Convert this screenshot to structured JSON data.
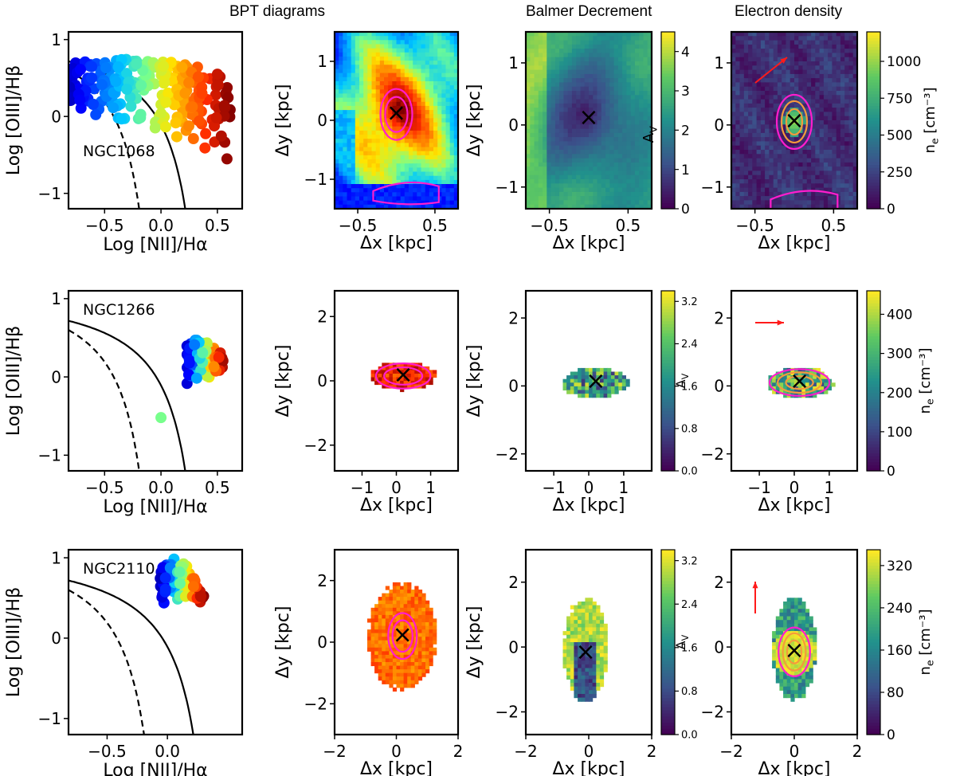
{
  "column_titles": [
    "BPT diagrams",
    "Balmer Decrement",
    "Electron density"
  ],
  "colors": {
    "frame": "#000000",
    "contour_magenta": "#ff1dce",
    "contour_orange": "#f59a3c",
    "arrow": "#ff1a1a"
  },
  "chart_data": {
    "rows": [
      {
        "galaxy": "NGC1068",
        "bpt": {
          "type": "scatter",
          "xlabel": "Log [NII]/Hα",
          "ylabel": "Log [OIII]/Hβ",
          "xlim": [
            -0.82,
            0.72
          ],
          "ylim": [
            -1.2,
            1.1
          ],
          "xticks": [
            -0.5,
            0.0,
            0.5
          ],
          "xticklabels": [
            "−0.5",
            "0.0",
            "0.5"
          ],
          "yticks": [
            -1,
            0,
            1
          ],
          "yticklabels": [
            "−1",
            "0",
            "1"
          ],
          "label": "NGC1068",
          "label_pos": "lower-left",
          "cloud": {
            "x_range": [
              -0.82,
              0.62
            ],
            "upper_peak": 0.75,
            "lower_left": 0.0,
            "lower_right": -0.75,
            "n": 260,
            "cmap": "jet"
          }
        },
        "map": {
          "xlabel": "Δx [kpc]",
          "ylabel": "Δy [kpc]",
          "xlim": [
            -0.8,
            0.8
          ],
          "ylim": [
            -1.5,
            1.5
          ],
          "xticks": [
            -0.5,
            0.5
          ],
          "xticklabels": [
            "−0.5",
            "0.5"
          ],
          "yticks": [
            -1,
            0,
            1
          ],
          "yticklabels": [
            "−1",
            "0",
            "1"
          ],
          "center": [
            0.0,
            0.1
          ],
          "style": "bpt_full"
        },
        "balmer": {
          "xlabel": "Δx [kpc]",
          "ylabel": "Δy [kpc]",
          "xlim": [
            -0.8,
            0.8
          ],
          "ylim": [
            -1.35,
            1.5
          ],
          "xticks": [
            -0.5,
            0.5
          ],
          "xticklabels": [
            "−0.5",
            "0.5"
          ],
          "yticks": [
            -1,
            0,
            1
          ],
          "yticklabels": [
            "−1",
            "0",
            "1"
          ],
          "center": [
            0.0,
            0.1
          ],
          "style": "av_full",
          "colorbar": {
            "label": "A_V",
            "min": 0,
            "max": 4.5,
            "ticks": [
              0,
              1,
              2,
              3,
              4
            ],
            "ticklabels": [
              "0",
              "1",
              "2",
              "3",
              "4"
            ],
            "label_side": "left"
          }
        },
        "density": {
          "xlabel": "Δx [kpc]",
          "ylabel": "",
          "xlim": [
            -0.8,
            0.8
          ],
          "ylim": [
            -1.35,
            1.5
          ],
          "xticks": [
            -0.5,
            0.5
          ],
          "xticklabels": [
            "−0.5",
            "0.5"
          ],
          "yticks": [
            -1,
            0,
            1
          ],
          "yticklabels": [
            "−1",
            "0",
            "1"
          ],
          "center": [
            0.0,
            0.05
          ],
          "style": "ne_full",
          "arrow": "up-right",
          "colorbar": {
            "label": "n_e [cm⁻³]",
            "min": 0,
            "max": 1200,
            "ticks": [
              0,
              250,
              500,
              750,
              1000
            ],
            "ticklabels": [
              "0",
              "250",
              "500",
              "750",
              "1000"
            ]
          }
        }
      },
      {
        "galaxy": "NGC1266",
        "bpt": {
          "type": "scatter",
          "xlabel": "Log [NII]/Hα",
          "ylabel": "Log [OIII]/Hβ",
          "xlim": [
            -0.82,
            0.72
          ],
          "ylim": [
            -1.2,
            1.1
          ],
          "xticks": [
            -0.5,
            0.0,
            0.5
          ],
          "xticklabels": [
            "−0.5",
            "0.0",
            "0.5"
          ],
          "yticks": [
            -1,
            0,
            1
          ],
          "yticklabels": [
            "−1",
            "0",
            "1"
          ],
          "label": "NGC1266",
          "label_pos": "upper-left",
          "cloud": {
            "x_range": [
              0.22,
              0.56
            ],
            "upper_peak": 0.48,
            "lower_left": -0.1,
            "lower_right": 0.05,
            "n": 80,
            "cmap": "jet"
          },
          "extra_points": [
            {
              "x": 0.0,
              "y": -0.52,
              "v": 0.35
            }
          ]
        },
        "map": {
          "xlabel": "Δx [kpc]",
          "ylabel": "Δy [kpc]",
          "xlim": [
            -1.8,
            1.8
          ],
          "ylim": [
            -2.8,
            2.8
          ],
          "xticks": [
            -1,
            0,
            1
          ],
          "xticklabels": [
            "−1",
            "0",
            "1"
          ],
          "yticks": [
            -2,
            0,
            2
          ],
          "yticklabels": [
            "−2",
            "0",
            "2"
          ],
          "center": [
            0.2,
            0.15
          ],
          "style": "bpt_blob"
        },
        "balmer": {
          "xlabel": "Δx [kpc]",
          "ylabel": "Δy [kpc]",
          "xlim": [
            -1.8,
            1.8
          ],
          "ylim": [
            -2.5,
            2.8
          ],
          "xticks": [
            -1,
            0,
            1
          ],
          "xticklabels": [
            "−1",
            "0",
            "1"
          ],
          "yticks": [
            -2,
            0,
            2
          ],
          "yticklabels": [
            "−2",
            "0",
            "2"
          ],
          "center": [
            0.2,
            0.1
          ],
          "style": "av_blob",
          "colorbar": {
            "label": "",
            "min": 0,
            "max": 3.4,
            "ticks": [
              0.0,
              0.8,
              1.6,
              2.4,
              3.2
            ],
            "ticklabels": [
              "0.0",
              "0.8",
              "1.6",
              "2.4",
              "3.2"
            ]
          }
        },
        "density": {
          "xlabel": "Δx [kpc]",
          "ylabel": "A_V",
          "xlim": [
            -1.8,
            1.8
          ],
          "ylim": [
            -2.5,
            2.8
          ],
          "xticks": [
            -1,
            0,
            1
          ],
          "xticklabels": [
            "−1",
            "0",
            "1"
          ],
          "yticks": [
            -2,
            0,
            2
          ],
          "yticklabels": [
            "−2",
            "0",
            "2"
          ],
          "center": [
            0.15,
            0.1
          ],
          "style": "ne_blob",
          "arrow": "right",
          "colorbar": {
            "label": "n_e [cm⁻³]",
            "min": 0,
            "max": 460,
            "ticks": [
              0,
              100,
              200,
              300,
              400
            ],
            "ticklabels": [
              "0",
              "100",
              "200",
              "300",
              "400"
            ]
          }
        }
      },
      {
        "galaxy": "NGC2110",
        "bpt": {
          "type": "scatter",
          "xlabel": "Log [NII]/Hα",
          "ylabel": "Log [OIII]/Hβ",
          "xlim": [
            -0.82,
            0.62
          ],
          "ylim": [
            -1.2,
            1.1
          ],
          "xticks": [
            -0.5,
            0.0
          ],
          "xticklabels": [
            "−0.5",
            "0.0"
          ],
          "yticks": [
            -1,
            0,
            1
          ],
          "yticklabels": [
            "−1",
            "0",
            "1"
          ],
          "label": "NGC2110",
          "label_pos": "upper-left",
          "cloud": {
            "x_range": [
              -0.06,
              0.3
            ],
            "upper_peak": 1.0,
            "lower_left": 0.38,
            "lower_right": 0.45,
            "n": 95,
            "cmap": "jet"
          }
        },
        "map": {
          "xlabel": "Δx [kpc]",
          "ylabel": "Δy [kpc]",
          "xlim": [
            -2.0,
            2.0
          ],
          "ylim": [
            -3.0,
            3.0
          ],
          "xticks": [
            -2,
            0,
            2
          ],
          "xticklabels": [
            "−2",
            "0",
            "2"
          ],
          "yticks": [
            -2,
            0,
            2
          ],
          "yticklabels": [
            "−2",
            "0",
            "2"
          ],
          "center": [
            0.2,
            0.2
          ],
          "style": "bpt_orange"
        },
        "balmer": {
          "xlabel": "Δx [kpc]",
          "ylabel": "Δy [kpc]",
          "xlim": [
            -2.0,
            2.0
          ],
          "ylim": [
            -2.7,
            3.0
          ],
          "xticks": [
            -2,
            0,
            2
          ],
          "xticklabels": [
            "−2",
            "0",
            "2"
          ],
          "yticks": [
            -2,
            0,
            2
          ],
          "yticklabels": [
            "−2",
            "0",
            "2"
          ],
          "center": [
            -0.1,
            -0.2
          ],
          "style": "av_vertical",
          "colorbar": {
            "label": "",
            "min": 0,
            "max": 3.4,
            "ticks": [
              0.0,
              0.8,
              1.6,
              2.4,
              3.2
            ],
            "ticklabels": [
              "0.0",
              "0.8",
              "1.6",
              "2.4",
              "3.2"
            ]
          }
        },
        "density": {
          "xlabel": "Δx [kpc]",
          "ylabel": "A_V",
          "xlim": [
            -2.0,
            2.0
          ],
          "ylim": [
            -2.7,
            3.0
          ],
          "xticks": [
            -2,
            0,
            2
          ],
          "xticklabels": [
            "−2",
            "0",
            "2"
          ],
          "yticks": [
            -2,
            0,
            2
          ],
          "yticklabels": [
            "−2",
            "0",
            "2"
          ],
          "center": [
            0.0,
            -0.15
          ],
          "style": "ne_vertical",
          "arrow": "up",
          "colorbar": {
            "label": "n_e [cm⁻³]",
            "min": 0,
            "max": 350,
            "ticks": [
              0,
              80,
              160,
              240,
              320
            ],
            "ticklabels": [
              "0",
              "80",
              "160",
              "240",
              "320"
            ]
          }
        }
      }
    ]
  }
}
